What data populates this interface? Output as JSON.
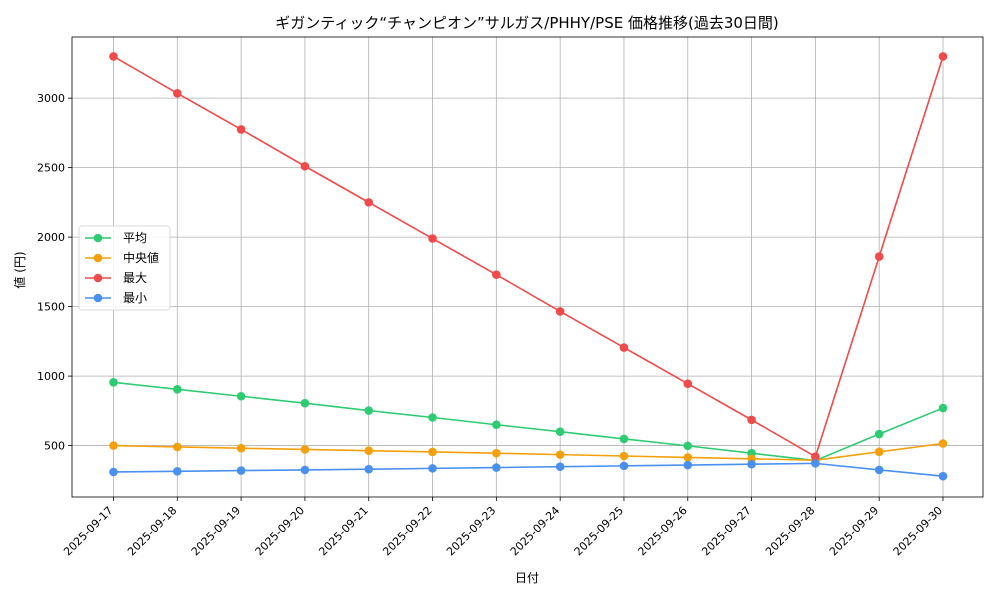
{
  "chart_data": {
    "type": "line",
    "title": "ギガンティック“チャンピオン”サルガス/PHHY/PSE 価格推移(過去30日間)",
    "xlabel": "日付",
    "ylabel": "値 (円)",
    "ylim": [
      130,
      3440
    ],
    "yticks": [
      500,
      1000,
      1500,
      2000,
      2500,
      3000
    ],
    "grid": true,
    "legend_position": "center-left",
    "categories": [
      "2025-09-17",
      "2025-09-18",
      "2025-09-19",
      "2025-09-20",
      "2025-09-21",
      "2025-09-22",
      "2025-09-23",
      "2025-09-24",
      "2025-09-25",
      "2025-09-26",
      "2025-09-27",
      "2025-09-28",
      "2025-09-29",
      "2025-09-30"
    ],
    "series": [
      {
        "name": "平均",
        "color": "#2ecc71",
        "values": [
          955,
          905,
          855,
          805,
          752,
          702,
          650,
          600,
          548,
          498,
          445,
          392,
          583,
          770
        ]
      },
      {
        "name": "中央値",
        "color": "#f5a00b",
        "values": [
          500,
          490,
          481,
          472,
          463,
          454,
          445,
          435,
          425,
          415,
          405,
          395,
          455,
          515
        ]
      },
      {
        "name": "最大",
        "color": "#f04a4a",
        "values": [
          3300,
          3035,
          2775,
          2510,
          2250,
          1990,
          1730,
          1465,
          1205,
          945,
          685,
          420,
          1860,
          3300
        ]
      },
      {
        "name": "最小",
        "color": "#4a90f0",
        "values": [
          310,
          315,
          320,
          325,
          330,
          336,
          342,
          348,
          354,
          360,
          366,
          372,
          325,
          280
        ]
      }
    ]
  }
}
